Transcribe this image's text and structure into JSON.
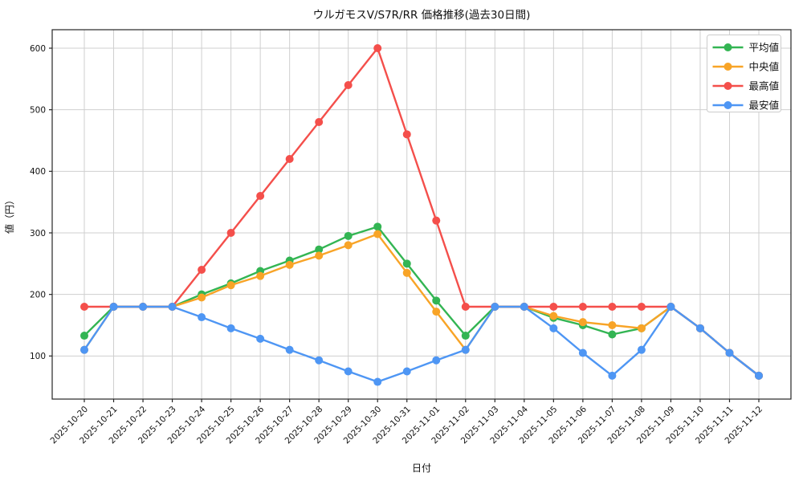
{
  "chart_data": {
    "type": "line",
    "title": "ウルガモスV/S7R/RR 価格推移(過去30日間)",
    "xlabel": "日付",
    "ylabel": "値（円）",
    "x": [
      "2025-10-20",
      "2025-10-21",
      "2025-10-22",
      "2025-10-23",
      "2025-10-24",
      "2025-10-25",
      "2025-10-26",
      "2025-10-27",
      "2025-10-28",
      "2025-10-29",
      "2025-10-30",
      "2025-10-31",
      "2025-11-01",
      "2025-11-02",
      "2025-11-03",
      "2025-11-04",
      "2025-11-05",
      "2025-11-06",
      "2025-11-07",
      "2025-11-08",
      "2025-11-09",
      "2025-11-10",
      "2025-11-11",
      "2025-11-12"
    ],
    "series": [
      {
        "name": "平均値",
        "key": "average",
        "color": "#33b553",
        "values": [
          133,
          180,
          180,
          180,
          200,
          218,
          238,
          255,
          273,
          295,
          310,
          250,
          190,
          133,
          180,
          180,
          162,
          150,
          135,
          145,
          180,
          145,
          105,
          68
        ]
      },
      {
        "name": "中央値",
        "key": "median",
        "color": "#f8a427",
        "values": [
          110,
          180,
          180,
          180,
          195,
          215,
          230,
          248,
          263,
          280,
          298,
          235,
          172,
          110,
          180,
          180,
          165,
          155,
          150,
          145,
          180,
          145,
          105,
          68
        ]
      },
      {
        "name": "最高値",
        "key": "max",
        "color": "#f44f4b",
        "values": [
          180,
          180,
          180,
          180,
          240,
          300,
          360,
          420,
          480,
          540,
          600,
          460,
          320,
          180,
          180,
          180,
          180,
          180,
          180,
          180,
          180,
          145,
          105,
          68
        ]
      },
      {
        "name": "最安値",
        "key": "min",
        "color": "#4e96f4",
        "values": [
          110,
          180,
          180,
          180,
          163,
          145,
          128,
          110,
          93,
          75,
          58,
          75,
          93,
          110,
          180,
          180,
          145,
          105,
          68,
          110,
          180,
          145,
          105,
          68
        ]
      }
    ],
    "yticks": [
      100,
      200,
      300,
      400,
      500,
      600
    ],
    "ylim": [
      30,
      630
    ],
    "grid": true,
    "grid_color": "#cfcfcf",
    "spine_color": "#262626",
    "legend_position": "upper right",
    "x_tick_rotation": 45
  }
}
